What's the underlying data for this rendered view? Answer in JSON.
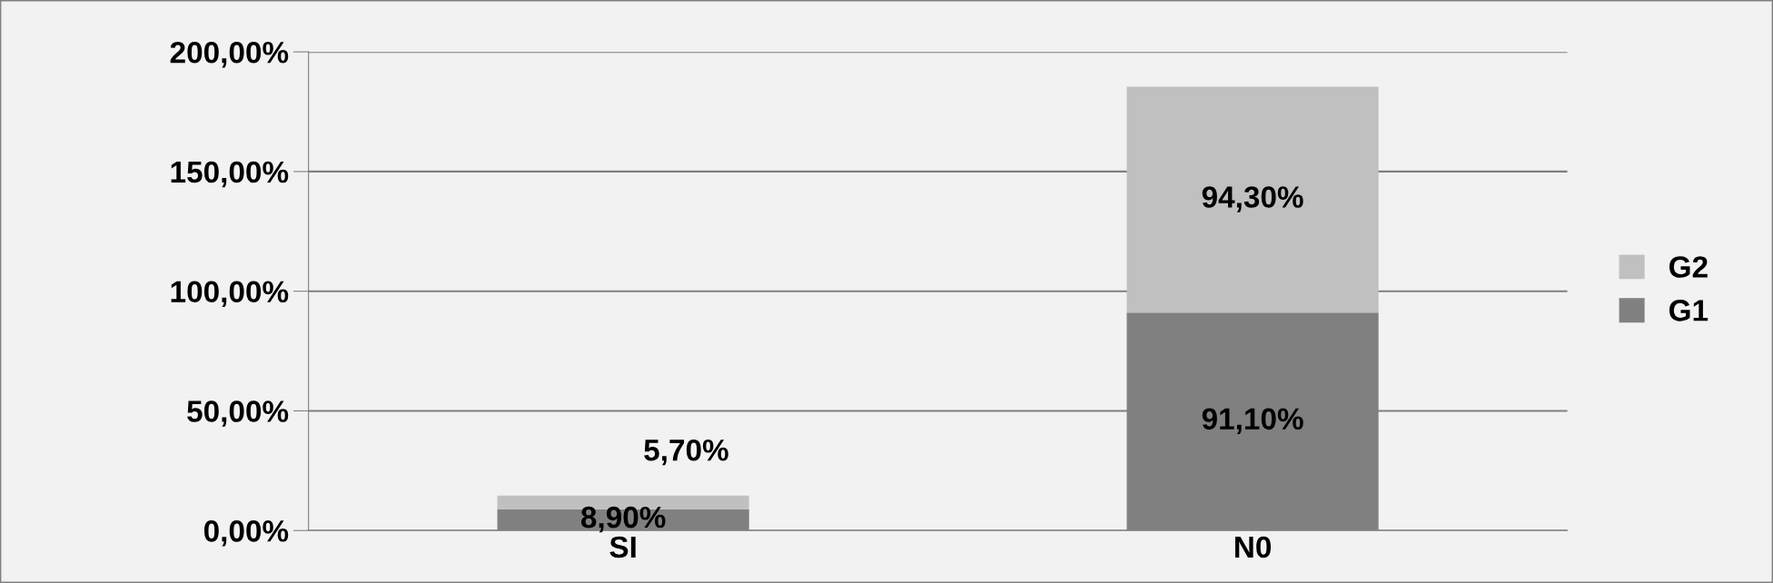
{
  "chart_data": {
    "type": "bar",
    "stacked": true,
    "categories": [
      "SI",
      "N0"
    ],
    "series": [
      {
        "name": "G1",
        "color": "#808080",
        "values": [
          8.9,
          91.1
        ],
        "value_labels": [
          "8,90%",
          "91,10%"
        ]
      },
      {
        "name": "G2",
        "color": "#c0c0c0",
        "values": [
          5.7,
          94.3
        ],
        "value_labels": [
          "5,70%",
          "94,30%"
        ]
      }
    ],
    "ylim": [
      0,
      200
    ],
    "yticks": [
      {
        "value": 0,
        "label": "0,00%"
      },
      {
        "value": 50,
        "label": "50,00%"
      },
      {
        "value": 100,
        "label": "100,00%"
      },
      {
        "value": 150,
        "label": "150,00%"
      },
      {
        "value": 200,
        "label": "200,00%"
      }
    ],
    "grid": "y",
    "legend": "right"
  }
}
